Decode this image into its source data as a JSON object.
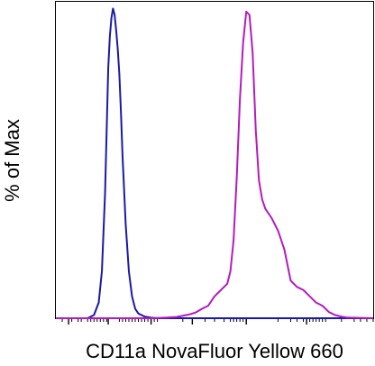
{
  "chart_data": {
    "type": "line",
    "title": "",
    "xlabel": "CD11a NovaFluor Yellow 660",
    "ylabel": "% of Max",
    "x_scale": "biexponential",
    "xlim": [
      0,
      100
    ],
    "ylim": [
      0,
      100
    ],
    "grid": false,
    "legend": "none",
    "series": [
      {
        "color": "#1a1aa6",
        "x": [
          0,
          8,
          10,
          11,
          12,
          13.5,
          14.5,
          15.5,
          16,
          16.5,
          17,
          17.5,
          18,
          18.5,
          19,
          19.5,
          20,
          20.5,
          21,
          22,
          23,
          24,
          25,
          26,
          27,
          28,
          30,
          32,
          34,
          36,
          40,
          45,
          50,
          60,
          70,
          80,
          90,
          100
        ],
        "y": [
          0,
          0,
          0,
          0.5,
          1,
          5,
          15,
          40,
          60,
          80,
          90,
          96,
          99,
          97,
          92,
          86,
          78,
          66,
          52,
          30,
          15,
          7,
          3,
          1.5,
          1,
          0.5,
          0.2,
          0,
          0,
          0,
          0,
          0,
          0,
          0,
          0,
          0,
          0,
          0
        ]
      },
      {
        "color": "#b31bbf",
        "x": [
          0,
          30,
          35,
          38,
          40,
          42,
          44,
          46,
          48,
          49,
          50,
          52,
          54,
          55,
          56,
          57,
          58,
          59,
          60,
          61,
          62,
          63,
          64,
          65,
          66,
          68,
          70,
          72,
          73,
          74,
          76,
          78,
          80,
          82,
          84,
          86,
          88,
          90,
          92,
          100
        ],
        "y": [
          0,
          0,
          0.2,
          0.4,
          0.8,
          1.2,
          1.8,
          3,
          4,
          5.5,
          7,
          9,
          11,
          15,
          25,
          45,
          70,
          88,
          98,
          97,
          85,
          60,
          44,
          38,
          35,
          32,
          28,
          22,
          17,
          12,
          10,
          9,
          7,
          5,
          4,
          2,
          1,
          0.5,
          0.2,
          0
        ]
      }
    ],
    "x_tick_values": [
      2,
      5,
      7,
      8,
      10,
      11,
      12,
      13,
      14,
      15,
      16,
      20,
      21,
      22,
      23,
      24,
      25,
      26,
      27,
      28,
      29,
      30,
      31,
      32,
      40,
      47,
      50,
      53,
      55,
      56,
      57,
      58,
      59,
      60,
      70,
      74,
      76,
      78,
      80,
      81,
      82,
      83,
      84,
      85,
      90,
      94,
      96,
      98,
      100
    ],
    "x_major_ticks": [
      4,
      16.5,
      30,
      43,
      60,
      79
    ]
  }
}
